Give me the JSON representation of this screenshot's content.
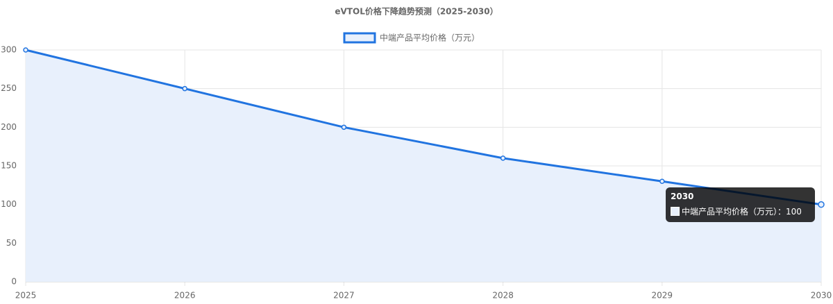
{
  "chart_data": {
    "type": "line",
    "title": "eVTOL价格下降趋势预测（2025-2030）",
    "categories": [
      "2025",
      "2026",
      "2027",
      "2028",
      "2029",
      "2030"
    ],
    "series": [
      {
        "name": "中端产品平均价格（万元）",
        "color": "#2174e0",
        "fill": "#e8f0fc",
        "values": [
          300,
          250,
          200,
          160,
          130,
          100
        ]
      }
    ],
    "ylim": [
      0,
      300
    ],
    "yticks": [
      0,
      50,
      100,
      150,
      200,
      250,
      300
    ],
    "grid": true,
    "legend": "top"
  }
}
